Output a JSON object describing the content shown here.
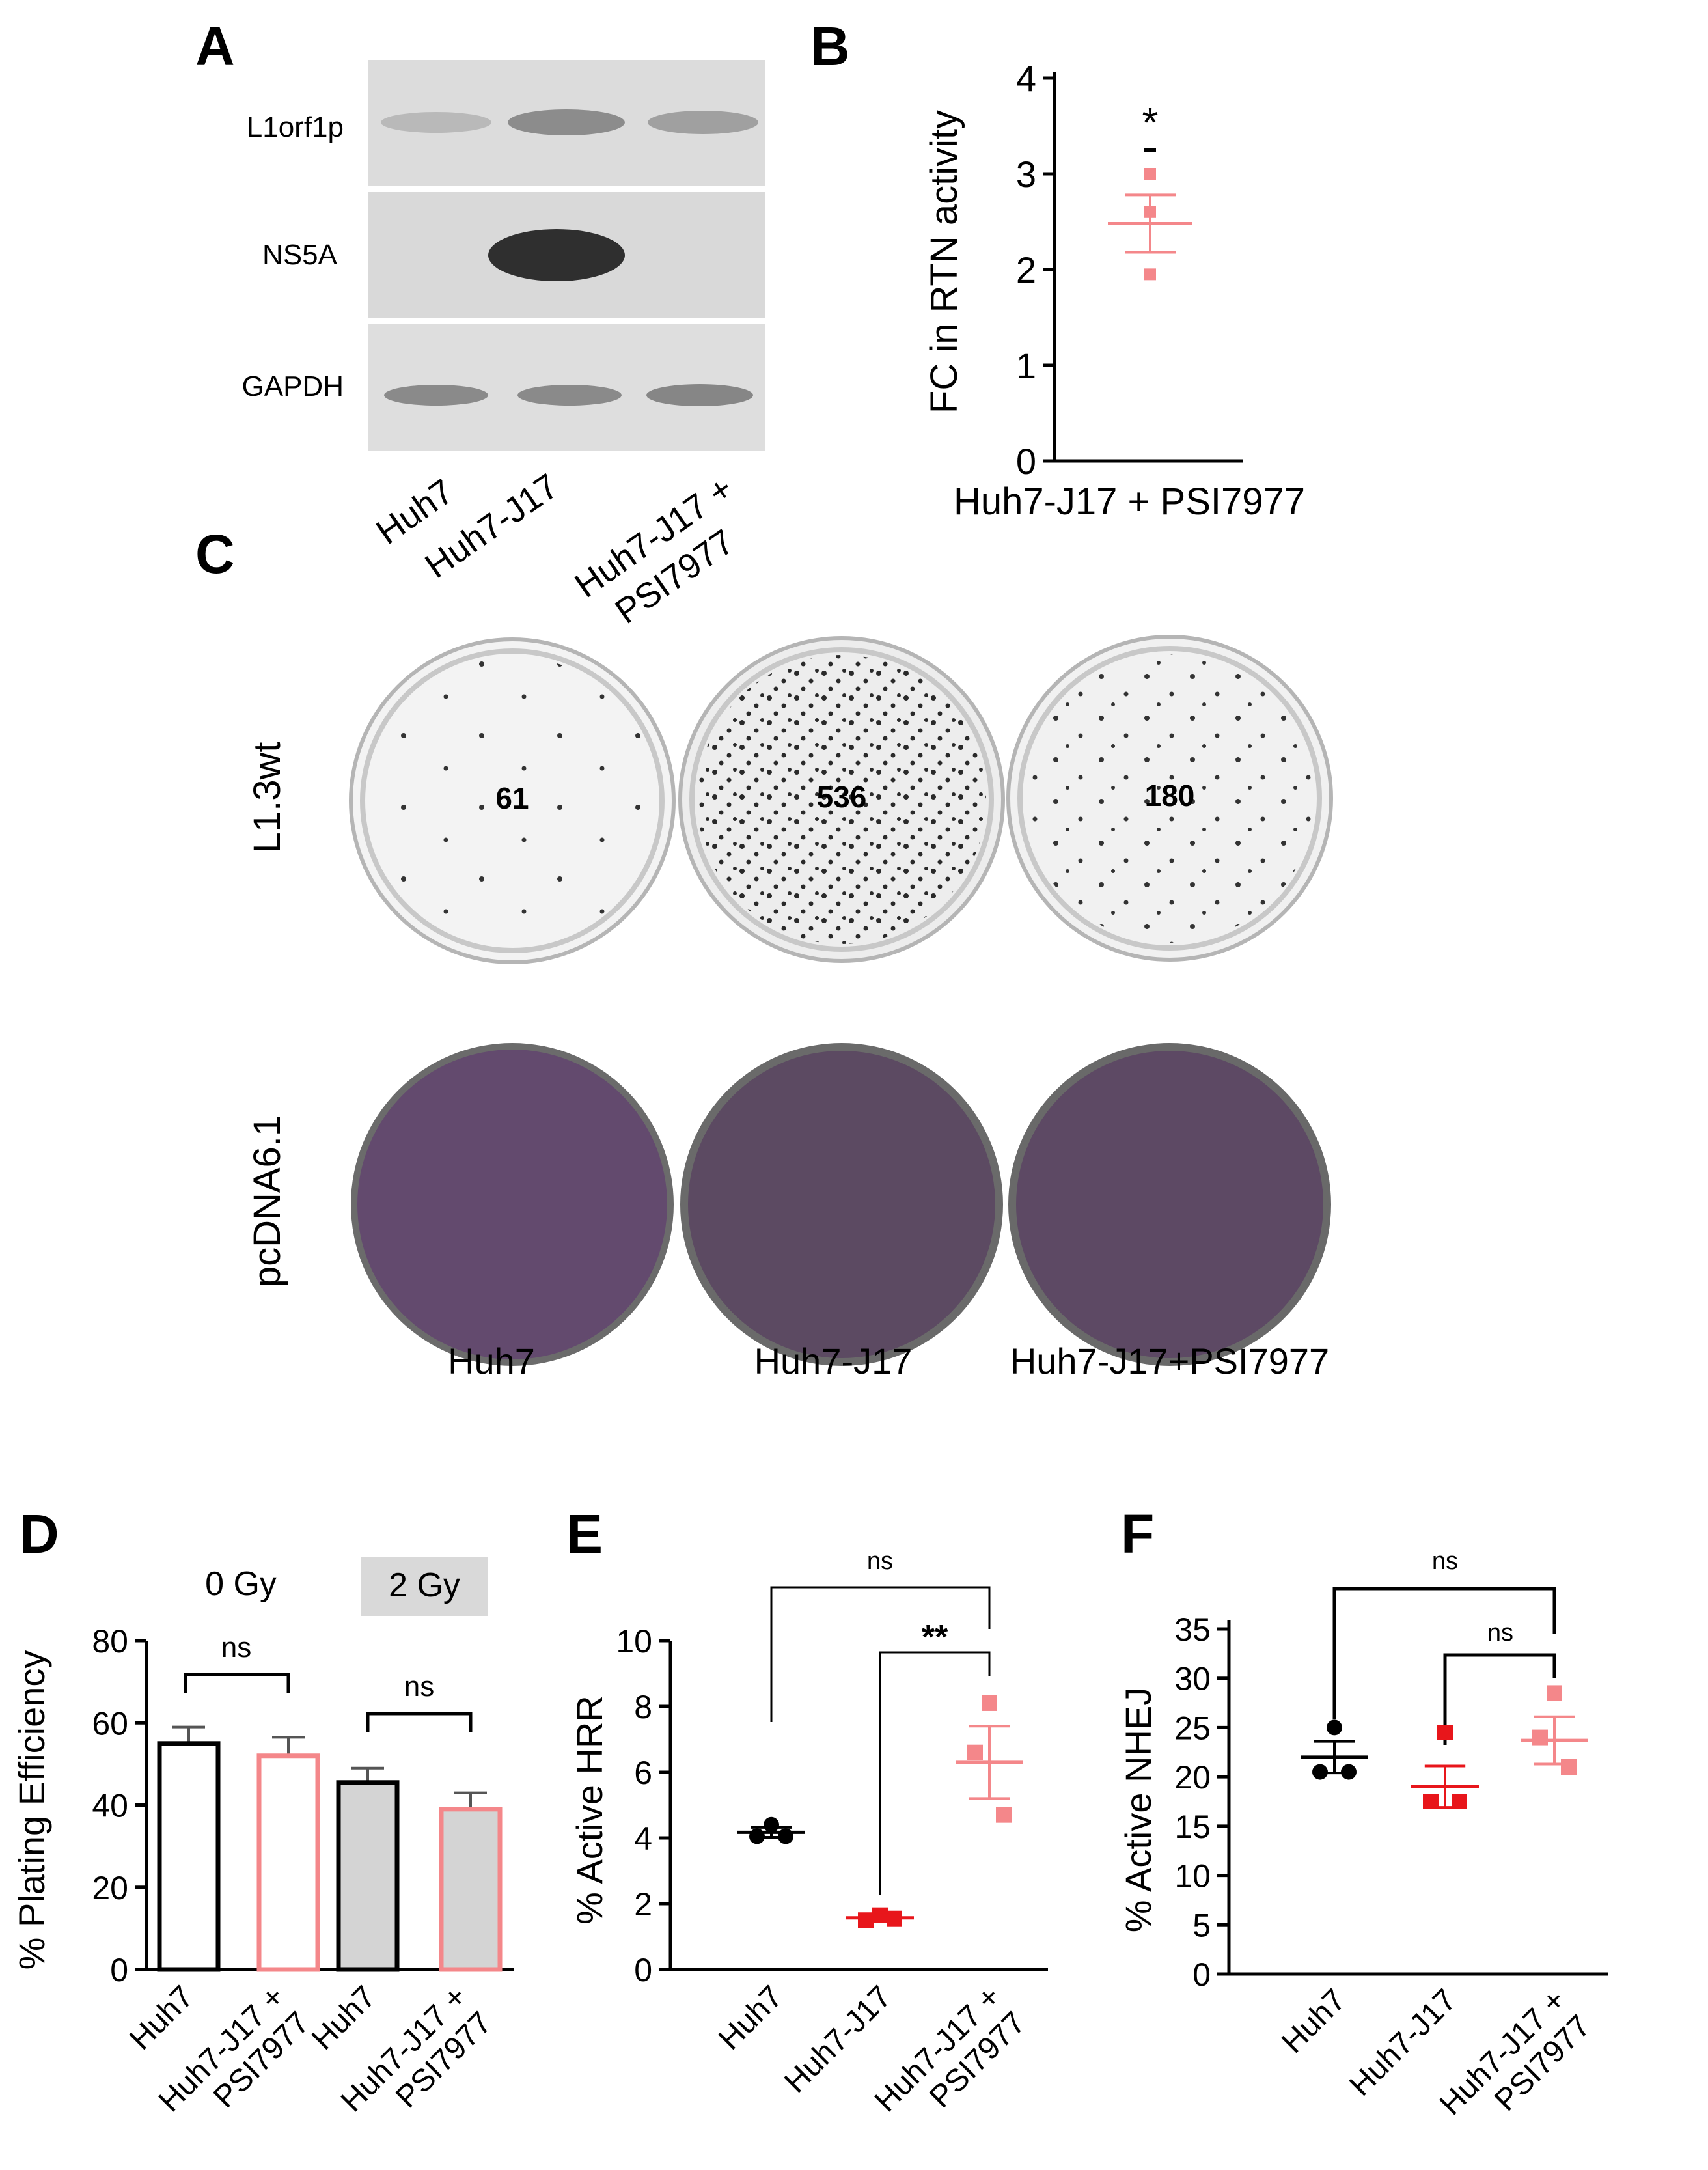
{
  "panel_a": {
    "letter": "A",
    "rows": [
      "L1orf1p",
      "NS5A",
      "GAPDH"
    ],
    "lanes": [
      "Huh7",
      "Huh7-J17",
      "Huh7-J17 +",
      "PSI7977"
    ]
  },
  "panel_b": {
    "letter": "B",
    "ylabel": "FC in RTN activity",
    "ticks": [
      "0",
      "1",
      "2",
      "3",
      "4"
    ],
    "xlabel": "Huh7-J17 + PSI7977",
    "sig": "*"
  },
  "panel_c": {
    "letter": "C",
    "rows": [
      "L1.3wt",
      "pcDNA6.1"
    ],
    "columns": [
      "Huh7",
      "Huh7-J17",
      "Huh7-J17+PSI7977"
    ],
    "colony_counts": [
      "61",
      "536",
      "180"
    ]
  },
  "panel_d": {
    "letter": "D",
    "groups": [
      "0 Gy",
      "2 Gy"
    ],
    "ylabel": "% Plating Efficiency",
    "ticks": [
      "0",
      "20",
      "40",
      "60",
      "80"
    ],
    "sig": [
      "ns",
      "ns"
    ],
    "xlabels": [
      "Huh7",
      "Huh7-J17 +",
      "PSI7977",
      "Huh7",
      "Huh7-J17 +",
      "PSI7977"
    ]
  },
  "panel_e": {
    "letter": "E",
    "ylabel": "% Active HRR",
    "ticks": [
      "0",
      "2",
      "4",
      "6",
      "8",
      "10"
    ],
    "sig": [
      "ns",
      "**"
    ],
    "xlabels": [
      "Huh7",
      "Huh7-J17",
      "Huh7-J17 +",
      "PSI7977"
    ]
  },
  "panel_f": {
    "letter": "F",
    "ylabel": "% Active NHEJ",
    "ticks": [
      "0",
      "5",
      "10",
      "15",
      "20",
      "25",
      "30",
      "35"
    ],
    "sig": [
      "ns",
      "ns"
    ],
    "xlabels": [
      "Huh7",
      "Huh7-J17",
      "Huh7-J17 +",
      "PSI7977"
    ]
  },
  "colors": {
    "huh7": "#000000",
    "j17": "#e8161b",
    "psi": "#f4878a",
    "gray_bar": "#d4d4d4",
    "gel": "#dcdcdc",
    "stain": "#60466a"
  },
  "chart_data": [
    {
      "panel": "B",
      "type": "scatter",
      "ylabel": "FC in RTN activity",
      "ylim": [
        0,
        4
      ],
      "categories": [
        "Huh7-J17 + PSI7977"
      ],
      "points": [
        3.0,
        2.6,
        1.95
      ],
      "mean": 2.48,
      "sem": 0.3
    },
    {
      "panel": "D",
      "type": "bar",
      "ylabel": "% Plating Efficiency",
      "ylim": [
        0,
        80
      ],
      "groups": [
        "0 Gy",
        "2 Gy"
      ],
      "categories": [
        "Huh7",
        "Huh7-J17 + PSI7977",
        "Huh7",
        "Huh7-J17 + PSI7977"
      ],
      "values": [
        55,
        52,
        45.5,
        39
      ],
      "errors": [
        4,
        4.5,
        3.5,
        4
      ]
    },
    {
      "panel": "E",
      "type": "scatter",
      "ylabel": "% Active HRR",
      "ylim": [
        0,
        10
      ],
      "categories": [
        "Huh7",
        "Huh7-J17",
        "Huh7-J17 + PSI7977"
      ],
      "points": [
        [
          4.4,
          4.05,
          4.05
        ],
        [
          1.65,
          1.5,
          1.55
        ],
        [
          8.1,
          6.6,
          4.7
        ]
      ],
      "mean": [
        4.17,
        1.57,
        6.3
      ],
      "sem": [
        0.15,
        0.08,
        1.1
      ]
    },
    {
      "panel": "F",
      "type": "scatter",
      "ylabel": "% Active NHEJ",
      "ylim": [
        0,
        35
      ],
      "categories": [
        "Huh7",
        "Huh7-J17",
        "Huh7-J17 + PSI7977"
      ],
      "points": [
        [
          25,
          20.5,
          20.5
        ],
        [
          24.5,
          17.5,
          17.5
        ],
        [
          28.5,
          24,
          21
        ]
      ],
      "mean": [
        22,
        19,
        23.7
      ],
      "sem": [
        1.6,
        2.1,
        2.4
      ]
    }
  ]
}
